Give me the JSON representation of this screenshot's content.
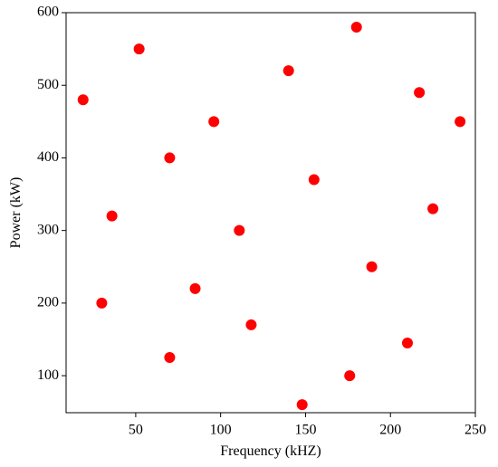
{
  "chart_data": {
    "type": "scatter",
    "x_label": "Frequency (kHZ)",
    "y_label": "Power (kW)",
    "x": [
      19,
      52,
      30,
      36,
      70,
      70,
      85,
      96,
      111,
      118,
      140,
      148,
      155,
      180,
      176,
      189,
      210,
      217,
      225,
      241
    ],
    "values": [
      480,
      550,
      200,
      320,
      400,
      125,
      220,
      450,
      300,
      170,
      520,
      60,
      370,
      580,
      100,
      250,
      145,
      490,
      330,
      450
    ],
    "color": "#ff0000",
    "xlim": [
      9,
      250
    ],
    "ylim": [
      49,
      600
    ],
    "xticks": [
      50,
      100,
      150,
      200,
      250
    ],
    "yticks": [
      100,
      200,
      300,
      400,
      500,
      600
    ],
    "grid": false
  }
}
